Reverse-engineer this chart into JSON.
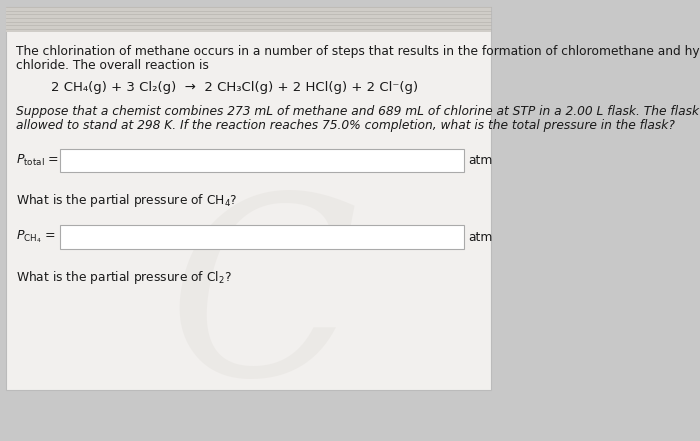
{
  "bg_color": "#c8c8c8",
  "card_color": "#f2f0ee",
  "card_border_color": "#bbbbbb",
  "intro_line1": "The chlorination of methane occurs in a number of steps that results in the formation of chloromethane and hydrogen",
  "intro_line2": "chloride. The overall reaction is",
  "reaction": "2 CH₄(g) + 3 Cl₂(g)  →  2 CH₃Cl(g) + 2 HCl(g) + 2 Cl⁻(g)",
  "suppose_line1": "Suppose that a chemist combines 273 mL of methane and 689 mL of chlorine at STP in a 2.00 L flask. The flask is then",
  "suppose_line2": "allowed to stand at 298 K. If the reaction reaches 75.0% completion, what is the total pressure in the flask?",
  "label1": "$P_{\\mathrm{total}}$ =",
  "unit1": "atm",
  "question2": "What is the partial pressure of CH₄?",
  "label2": "$P_{\\mathrm{CH_4}}$ =",
  "unit2": "atm",
  "question3": "What is the partial pressure of Cl₂?",
  "text_color": "#1a1a1a",
  "box_fill": "#ffffff",
  "box_edge": "#aaaaaa",
  "font_size_body": 8.8,
  "font_size_reaction": 9.5,
  "font_size_label": 9.0,
  "stripe_color": "#d0cdc8",
  "stripe_line_color": "#b8b5b0"
}
